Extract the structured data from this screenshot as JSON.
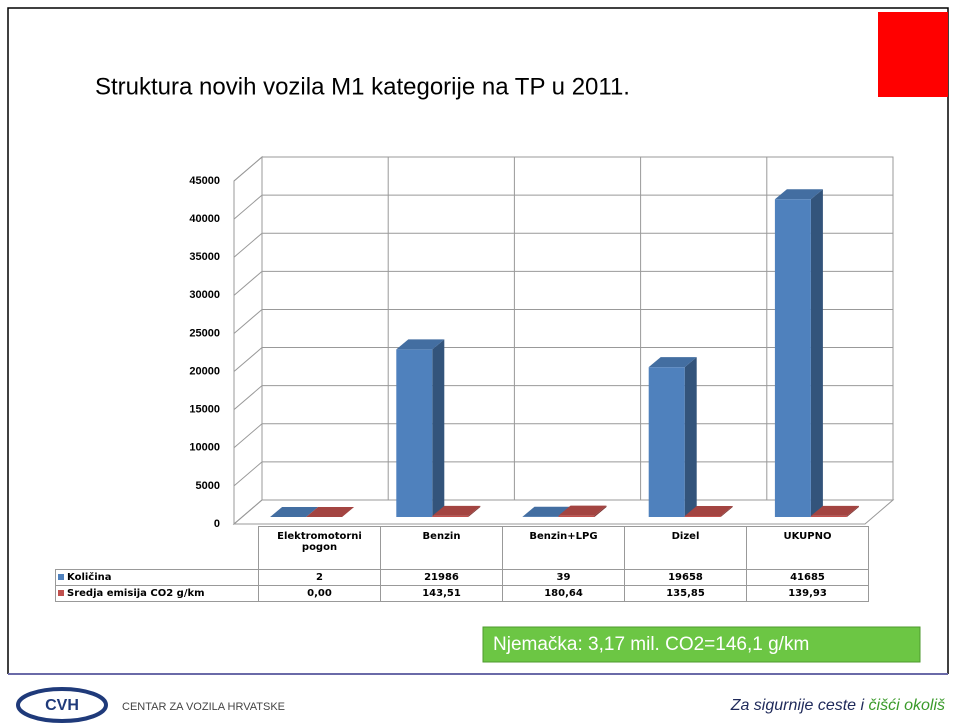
{
  "chart_data": {
    "type": "bar3d",
    "title": "Struktura novih vozila M1 kategorije  na TP u 2011.",
    "categories": [
      "Elektromotorni pogon",
      "Benzin",
      "Benzin+LPG",
      "Dizel",
      "UKUPNO"
    ],
    "series": [
      {
        "name": "Količina",
        "color": "#4f81bd",
        "values": [
          2,
          21986,
          39,
          19658,
          41685
        ]
      },
      {
        "name": "Sredja emisija CO2 g/km",
        "color": "#c0504d",
        "values": [
          0,
          143.51,
          180.64,
          135.85,
          139.93
        ],
        "value_labels": [
          "0,00",
          "143,51",
          "180,64",
          "135,85",
          "139,93"
        ]
      }
    ],
    "ylim": [
      0,
      45000
    ],
    "yticks": [
      0,
      5000,
      10000,
      15000,
      20000,
      25000,
      30000,
      35000,
      40000,
      45000
    ],
    "grid": true,
    "annotation": "Njemačka: 3,17 mil. CO2=146,1 g/km"
  },
  "footer": {
    "logo": "CVH",
    "organization": "CENTAR ZA VOZILA HRVATSKE",
    "slogan": [
      "Za sigurnije ceste i ",
      "čišći okoliš"
    ]
  }
}
